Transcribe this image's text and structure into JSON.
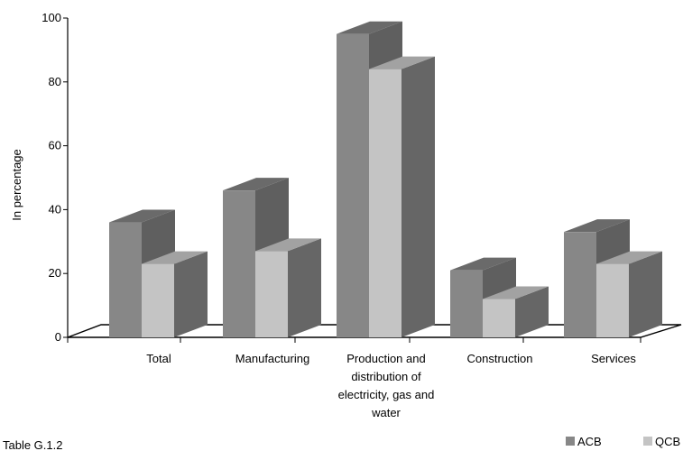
{
  "chart_data": {
    "type": "bar",
    "categories": [
      "Total",
      "Manufacturing",
      "Production and distribution of electricity, gas and water",
      "Construction",
      "Services"
    ],
    "category_lines": [
      [
        "Total"
      ],
      [
        "Manufacturing"
      ],
      [
        "Production and",
        "distribution of",
        "electricity, gas and",
        "water"
      ],
      [
        "Construction"
      ],
      [
        "Services"
      ]
    ],
    "series": [
      {
        "name": "ACB",
        "values": [
          36,
          46,
          95,
          21,
          33
        ],
        "front_color": "#878787",
        "side_color": "#5f5f5f",
        "top_color": "#6a6a6a"
      },
      {
        "name": "QCB",
        "values": [
          23,
          27,
          84,
          12,
          23
        ],
        "front_color": "#c4c4c4",
        "side_color": "#666666",
        "top_color": "#a2a2a2"
      }
    ],
    "ylabel": "In percentage",
    "xlabel": "",
    "ylim": [
      0,
      100
    ],
    "yticks": [
      0,
      20,
      40,
      60,
      80,
      100
    ],
    "grid": false,
    "legend_position": "bottom-right",
    "source_text": ": Table G.1.2"
  }
}
